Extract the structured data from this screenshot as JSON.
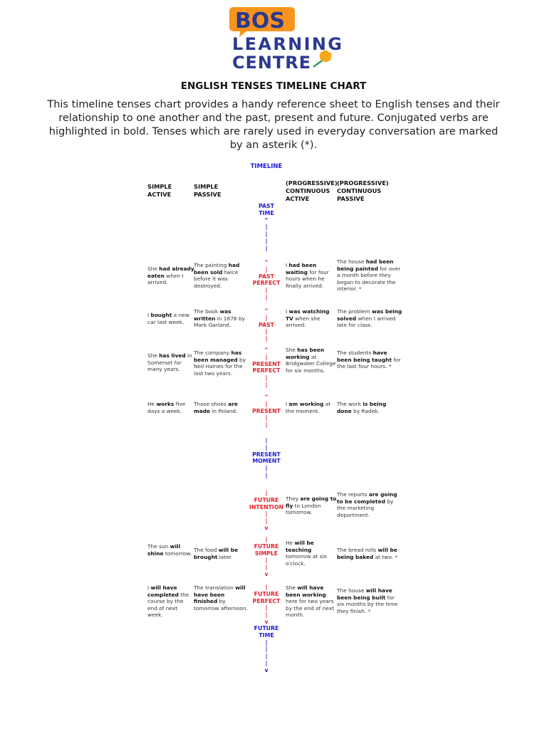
{
  "logo": {
    "line1": "BOS",
    "line2": "LEARNING",
    "line3": "CENTRE",
    "colors": {
      "orange": "#f7941d",
      "navy": "#2b3990"
    }
  },
  "title": "ENGLISH TENSES TIMELINE CHART",
  "intro": "This timeline tenses chart provides a handy reference sheet to English tenses and their relationship to one another and the past, present and future. Conjugated verbs are highlighted in bold. Tenses which are rarely used in everyday conversation are marked by an asterik (*).",
  "timeline_label": "TIMELINE",
  "headers": [
    [
      "SIMPLE",
      "ACTIVE"
    ],
    [
      "SIMPLE",
      "PASSIVE"
    ],
    [
      "(PROGRESSIVE)",
      "CONTINUOUS",
      "ACTIVE"
    ],
    [
      "(PROGRESSIVE)",
      "CONTINUOUS",
      "PASSIVE"
    ]
  ],
  "colors": {
    "tense_label": "#e8202a",
    "time_marker": "#1a1ad6"
  },
  "axis_blocks": [
    {
      "color": "blue",
      "lines": [
        "PAST",
        "TIME",
        "^",
        "|",
        "|",
        "|",
        "|"
      ]
    },
    {
      "color": "red",
      "lines": [
        "^",
        "|",
        "PAST",
        "PERFECT",
        "|",
        "|"
      ]
    },
    {
      "color": "red",
      "lines": [
        "^",
        "|",
        "PAST",
        "|",
        "|"
      ]
    },
    {
      "color": "red",
      "lines": [
        "^",
        "|",
        "PRESENT",
        "PERFECT",
        "|",
        "|"
      ]
    },
    {
      "color": "red",
      "lines": [
        "^",
        "|",
        "PRESENT",
        "|",
        "|"
      ]
    },
    {
      "color": "blue",
      "lines": [
        "|",
        "|",
        "PRESENT",
        "MOMENT",
        "|",
        "|"
      ]
    },
    {
      "color": "red",
      "lines": [
        "|",
        "FUTURE",
        "INTENTION",
        "|",
        "|",
        "v"
      ]
    },
    {
      "color": "red",
      "lines": [
        "|",
        "FUTURE",
        "SIMPLE",
        "|",
        "|",
        "v"
      ]
    },
    {
      "color": "red",
      "lines": [
        "|",
        "FUTURE",
        "PERFECT",
        "|",
        "|",
        "v"
      ]
    },
    {
      "color": "blue",
      "lines": [
        "FUTURE",
        "TIME",
        "|",
        "|",
        "|",
        "|",
        "v"
      ]
    }
  ],
  "rows": [
    {
      "tense": "past perfect",
      "cells": [
        [
          {
            "t": "She "
          },
          {
            "t": "had already eaten",
            "b": 1
          },
          {
            "t": " when I arrived."
          }
        ],
        [
          {
            "t": "The painting "
          },
          {
            "t": "had been sold",
            "b": 1
          },
          {
            "t": " twice before it was destroyed."
          }
        ],
        [
          {
            "t": "I "
          },
          {
            "t": "had been waiting",
            "b": 1
          },
          {
            "t": " for four hours when he finally arrived."
          }
        ],
        [
          {
            "t": "The house "
          },
          {
            "t": "had been being painted",
            "b": 1
          },
          {
            "t": " for over a month before they began to decorate the interior. *"
          }
        ]
      ]
    },
    {
      "tense": "past",
      "cells": [
        [
          {
            "t": "I "
          },
          {
            "t": "bought",
            "b": 1
          },
          {
            "t": " a new car last week."
          }
        ],
        [
          {
            "t": "The book "
          },
          {
            "t": "was written",
            "b": 1
          },
          {
            "t": " in 1876 by Mark Garland."
          }
        ],
        [
          {
            "t": "I "
          },
          {
            "t": "was watching TV",
            "b": 1
          },
          {
            "t": " when she arrived."
          }
        ],
        [
          {
            "t": "The problem "
          },
          {
            "t": "was being solved",
            "b": 1
          },
          {
            "t": " when I arrived late for class."
          }
        ]
      ]
    },
    {
      "tense": "present perfect",
      "cells": [
        [
          {
            "t": "She "
          },
          {
            "t": "has lived",
            "b": 1
          },
          {
            "t": " in Somerset for many years."
          }
        ],
        [
          {
            "t": "The company "
          },
          {
            "t": "has been managed",
            "b": 1
          },
          {
            "t": " by Neil Haines for the last two years."
          }
        ],
        [
          {
            "t": "She "
          },
          {
            "t": "has been working",
            "b": 1
          },
          {
            "t": " at Bridgwater College for six months."
          }
        ],
        [
          {
            "t": "The students "
          },
          {
            "t": "have been being taught",
            "b": 1
          },
          {
            "t": " for the last four hours. *"
          }
        ]
      ]
    },
    {
      "tense": "present",
      "cells": [
        [
          {
            "t": "He "
          },
          {
            "t": "works",
            "b": 1
          },
          {
            "t": " five days a week."
          }
        ],
        [
          {
            "t": "Those shoes "
          },
          {
            "t": "are made",
            "b": 1
          },
          {
            "t": " in Poland."
          }
        ],
        [
          {
            "t": "I "
          },
          {
            "t": "am working",
            "b": 1
          },
          {
            "t": " at the moment."
          }
        ],
        [
          {
            "t": "The work "
          },
          {
            "t": "is being done",
            "b": 1
          },
          {
            "t": " by Radek."
          }
        ]
      ]
    },
    {
      "tense": "future intention",
      "cells": [
        [],
        [],
        [
          {
            "t": "They "
          },
          {
            "t": "are going to fly",
            "b": 1
          },
          {
            "t": " to London tomorrow."
          }
        ],
        [
          {
            "t": "The reports "
          },
          {
            "t": "are going to be completed",
            "b": 1
          },
          {
            "t": " by the marketing department."
          }
        ]
      ]
    },
    {
      "tense": "future simple",
      "cells": [
        [
          {
            "t": "The sun "
          },
          {
            "t": "will shine",
            "b": 1
          },
          {
            "t": " tomorrow."
          }
        ],
        [
          {
            "t": "The food "
          },
          {
            "t": "will be brought",
            "b": 1
          },
          {
            "t": " later."
          }
        ],
        [
          {
            "t": "He "
          },
          {
            "t": "will be teaching",
            "b": 1
          },
          {
            "t": " tomorrow at six o'clock."
          }
        ],
        [
          {
            "t": "The bread rolls "
          },
          {
            "t": "will be being baked",
            "b": 1
          },
          {
            "t": " at two. *"
          }
        ]
      ]
    },
    {
      "tense": "future perfect",
      "cells": [
        [
          {
            "t": "I "
          },
          {
            "t": "will have completed",
            "b": 1
          },
          {
            "t": " the course by the end of next week."
          }
        ],
        [
          {
            "t": "The translation "
          },
          {
            "t": "will have been finished",
            "b": 1
          },
          {
            "t": " by tomorrow afternoon."
          }
        ],
        [
          {
            "t": "She "
          },
          {
            "t": "will have been working",
            "b": 1
          },
          {
            "t": " here for two years by the end of next month."
          }
        ],
        [
          {
            "t": "The house "
          },
          {
            "t": "will have been being built",
            "b": 1
          },
          {
            "t": " for six months by the time they finish. *"
          }
        ]
      ]
    }
  ]
}
